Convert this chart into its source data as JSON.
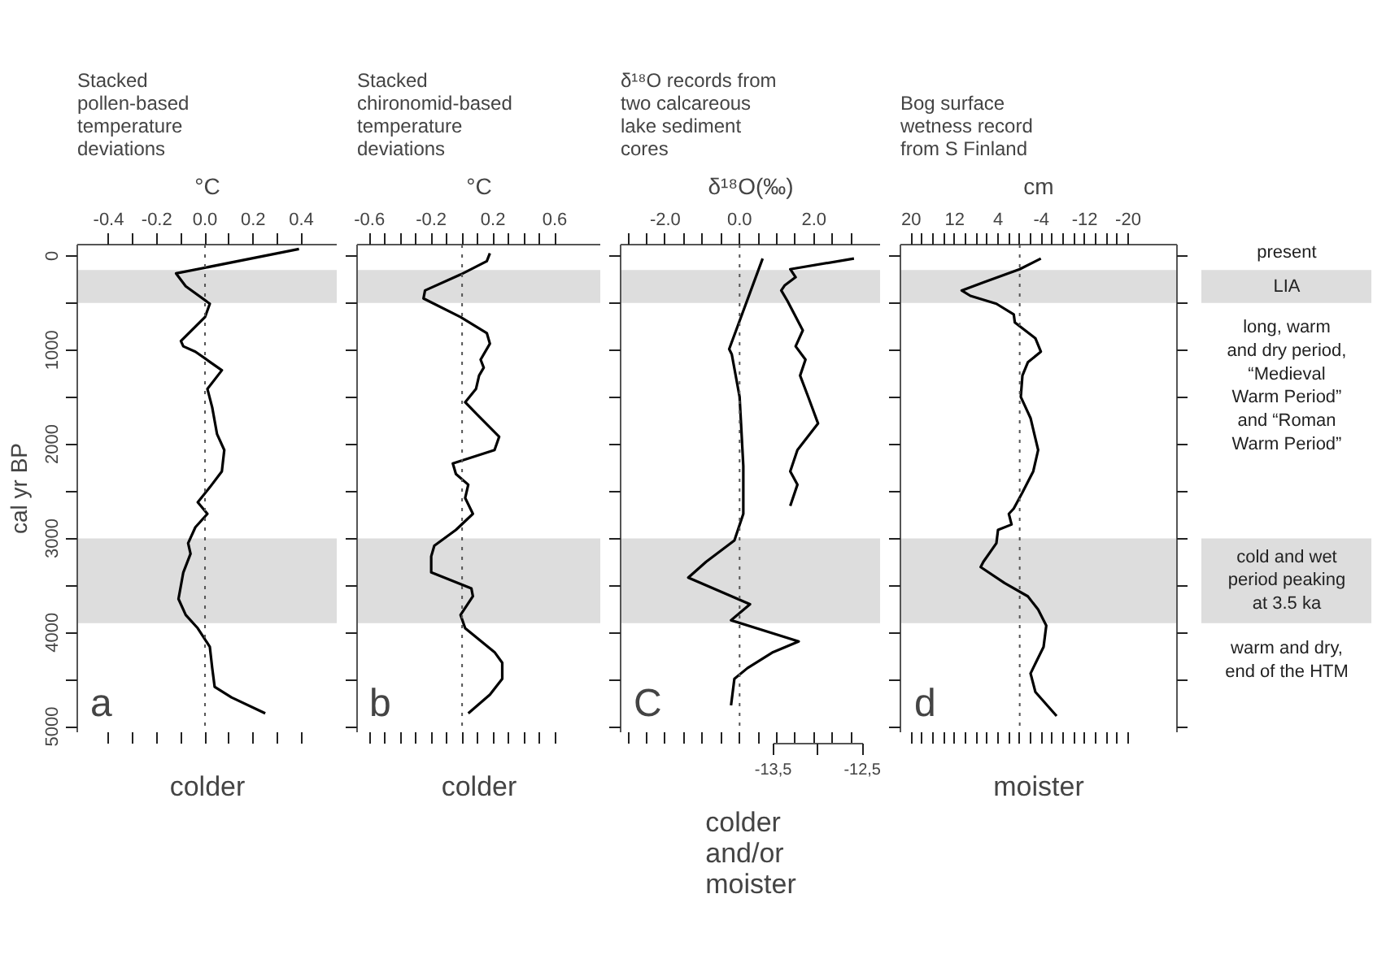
{
  "chart_data": [
    {
      "type": "line",
      "orientation": "horizontal",
      "title": "Stacked\npollen-based\ntemperature\ndeviations",
      "xlabel": "°C",
      "ylabel": "cal yr BP",
      "xlim": [
        -0.53,
        0.55
      ],
      "ylim": [
        5060,
        -120
      ],
      "xticks": [
        -0.4,
        {
          "value": -0.3,
          "label": null
        },
        -0.2,
        {
          "value": -0.1,
          "label": null
        },
        {
          "value": 0,
          "label": "0.0"
        },
        {
          "value": 0.1,
          "label": null
        },
        0.2,
        {
          "value": 0.3,
          "label": null
        },
        0.4
      ],
      "yticks": [
        0,
        {
          "value": 500,
          "label": null
        },
        1000,
        {
          "value": 1500,
          "label": null
        },
        2000,
        {
          "value": 2500,
          "label": null
        },
        3000,
        {
          "value": 3500,
          "label": null
        },
        4000,
        {
          "value": 4500,
          "label": null
        },
        5000
      ],
      "grid": false,
      "series": [
        {
          "color": "#000000",
          "x": [
            -73,
            186,
            322,
            508,
            650,
            904,
            960,
            1017,
            1215,
            1413,
            1610,
            1893,
            2062,
            2288,
            2458,
            2616,
            2740,
            2882,
            3051,
            3164,
            3362,
            3644,
            3814,
            3955,
            4153,
            4379,
            4577,
            4690,
            4859
          ],
          "values": [
            0.39,
            -0.12,
            -0.08,
            0.02,
            0.0,
            -0.1,
            -0.09,
            -0.04,
            0.07,
            0.01,
            0.03,
            0.05,
            0.08,
            0.07,
            0.02,
            -0.03,
            0.01,
            -0.04,
            -0.07,
            -0.06,
            -0.09,
            -0.11,
            -0.08,
            -0.03,
            0.02,
            0.03,
            0.04,
            0.11,
            0.25
          ]
        }
      ],
      "ref_lines": [
        {
          "axis": "x",
          "value": 0,
          "color": "#555555",
          "line_style": "dotted"
        }
      ],
      "bands": [
        {
          "axis": "y",
          "from": 150,
          "to": 500,
          "color": "#dddddd"
        },
        {
          "axis": "y",
          "from": 3000,
          "to": 3900,
          "color": "#dddddd"
        }
      ],
      "annotations": [
        "a",
        "colder"
      ]
    },
    {
      "type": "line",
      "orientation": "horizontal",
      "title": "Stacked\nchironomid-based\ntemperature\ndeviations",
      "xlabel": "°C",
      "xlim": [
        -0.68,
        0.9
      ],
      "ylim": [
        5060,
        -120
      ],
      "tick_labels": "x",
      "xticks": [
        -0.6,
        {
          "value": -0.5,
          "label": null
        },
        {
          "value": -0.4,
          "label": null
        },
        {
          "value": -0.3,
          "label": null
        },
        -0.2,
        {
          "value": -0.1,
          "label": null
        },
        {
          "value": 0,
          "label": null
        },
        {
          "value": 0.1,
          "label": null
        },
        0.2,
        {
          "value": 0.3,
          "label": null
        },
        {
          "value": 0.4,
          "label": null
        },
        {
          "value": 0.5,
          "label": null
        },
        0.6
      ],
      "yticks": [
        0,
        {
          "value": 500,
          "label": null
        },
        1000,
        {
          "value": 1500,
          "label": null
        },
        2000,
        {
          "value": 2500,
          "label": null
        },
        3000,
        {
          "value": 3500,
          "label": null
        },
        4000,
        {
          "value": 4500,
          "label": null
        },
        5000
      ],
      "grid": false,
      "series": [
        {
          "color": "#000000",
          "x": [
            -28,
            56,
            198,
            367,
            452,
            650,
            819,
            932,
            1102,
            1187,
            1271,
            1413,
            1554,
            1723,
            1921,
            2062,
            2204,
            2317,
            2430,
            2571,
            2740,
            2910,
            3079,
            3192,
            3362,
            3531,
            3616,
            3814,
            3955,
            4209,
            4322,
            4492,
            4661,
            4859
          ],
          "values": [
            0.18,
            0.16,
            -0.01,
            -0.24,
            -0.25,
            -0.01,
            0.16,
            0.18,
            0.12,
            0.14,
            0.11,
            0.09,
            0.02,
            0.12,
            0.24,
            0.21,
            -0.06,
            -0.04,
            0.04,
            0.02,
            0.07,
            -0.04,
            -0.18,
            -0.2,
            -0.2,
            0.06,
            0.07,
            -0.01,
            0.02,
            0.21,
            0.26,
            0.26,
            0.18,
            0.04
          ]
        }
      ],
      "ref_lines": [
        {
          "axis": "x",
          "value": 0,
          "color": "#555555",
          "line_style": "dotted"
        }
      ],
      "bands": [
        {
          "axis": "y",
          "from": 150,
          "to": 500,
          "color": "#dddddd"
        },
        {
          "axis": "y",
          "from": 3000,
          "to": 3900,
          "color": "#dddddd"
        }
      ],
      "annotations": [
        "b",
        "colder"
      ]
    },
    {
      "type": "line",
      "orientation": "horizontal",
      "title": "δ¹⁸O records from\ntwo calcareous\nlake sediment\ncores",
      "xlabel": "δ¹⁸O(‰)",
      "xlim": [
        -3.2,
        3.8
      ],
      "x2lim": [
        -15.2,
        -12.3
      ],
      "ylim": [
        5060,
        -120
      ],
      "tick_labels": "x",
      "xticks": [
        {
          "value": -3,
          "label": null
        },
        {
          "value": -2.5,
          "label": null
        },
        {
          "value": -2,
          "label": "-2.0"
        },
        {
          "value": -1.5,
          "label": null
        },
        {
          "value": -1,
          "label": null
        },
        {
          "value": -0.5,
          "label": null
        },
        {
          "value": 0,
          "label": "0.0"
        },
        {
          "value": 0.5,
          "label": null
        },
        {
          "value": 1,
          "label": null
        },
        {
          "value": 1.5,
          "label": null
        },
        {
          "value": 2,
          "label": "2.0"
        },
        {
          "value": 2.5,
          "label": null
        },
        {
          "value": 3,
          "label": null
        }
      ],
      "x2ticks": [
        {
          "value": -13.5,
          "label": "-13,5"
        },
        {
          "value": -13,
          "label": null
        },
        {
          "value": -12.5,
          "label": "-12,5"
        }
      ],
      "yticks": [
        0,
        {
          "value": 500,
          "label": null
        },
        1000,
        {
          "value": 1500,
          "label": null
        },
        2000,
        {
          "value": 2500,
          "label": null
        },
        3000,
        {
          "value": 3500,
          "label": null
        },
        4000,
        {
          "value": 4500,
          "label": null
        },
        5000
      ],
      "grid": false,
      "series": [
        {
          "color": "#000000",
          "x": [
            28,
            989,
            1045,
            1497,
            2232,
            2740,
            3023,
            3249,
            3418,
            3701,
            3870,
            4096,
            4209,
            4379,
            4492,
            4774
          ],
          "values": [
            0.62,
            -0.28,
            -0.21,
            0.0,
            0.1,
            0.1,
            -0.14,
            -0.9,
            -1.38,
            0.28,
            -0.23,
            1.59,
            0.9,
            0.21,
            -0.14,
            -0.23
          ]
        },
        {
          "color": "#000000",
          "axis": "x2",
          "x": [
            28,
            141,
            226,
            311,
            367,
            480,
            791,
            960,
            1102,
            1271,
            1497,
            1780,
            2062,
            2288,
            2430,
            2655
          ],
          "values": [
            -12.6,
            -13.31,
            -13.25,
            -13.37,
            -13.41,
            -13.34,
            -13.17,
            -13.25,
            -13.14,
            -13.2,
            -13.11,
            -13.0,
            -13.23,
            -13.31,
            -13.23,
            -13.31
          ]
        }
      ],
      "ref_lines": [
        {
          "axis": "x",
          "value": 0,
          "color": "#555555",
          "line_style": "dotted"
        }
      ],
      "bands": [
        {
          "axis": "y",
          "from": 150,
          "to": 500,
          "color": "#dddddd"
        },
        {
          "axis": "y",
          "from": 3000,
          "to": 3900,
          "color": "#dddddd"
        }
      ],
      "annotations": [
        "C",
        "colder\nand/or\nmoister"
      ]
    },
    {
      "type": "line",
      "orientation": "horizontal",
      "title": "Bog surface\nwetness record\nfrom S Finland",
      "xlabel": "cm",
      "xlim": [
        22,
        -29
      ],
      "ylim": [
        5060,
        -120
      ],
      "tick_labels": "x",
      "xticks": [
        20,
        {
          "value": 18,
          "label": null
        },
        {
          "value": 16,
          "label": null
        },
        {
          "value": 14,
          "label": null
        },
        12,
        {
          "value": 10,
          "label": null
        },
        {
          "value": 8,
          "label": null
        },
        {
          "value": 6,
          "label": null
        },
        4,
        {
          "value": 2,
          "label": null
        },
        {
          "value": 0,
          "label": null
        },
        {
          "value": -2,
          "label": null
        },
        -4,
        {
          "value": -6,
          "label": null
        },
        {
          "value": -8,
          "label": null
        },
        {
          "value": -10,
          "label": null
        },
        -12,
        {
          "value": -14,
          "label": null
        },
        {
          "value": -16,
          "label": null
        },
        {
          "value": -18,
          "label": null
        },
        -20
      ],
      "yticks": [
        0,
        {
          "value": 500,
          "label": null
        },
        1000,
        {
          "value": 1500,
          "label": null
        },
        2000,
        {
          "value": 2500,
          "label": null
        },
        3000,
        {
          "value": 3500,
          "label": null
        },
        4000,
        {
          "value": 4500,
          "label": null
        },
        5000
      ],
      "grid": false,
      "series": [
        {
          "color": "#000000",
          "x": [
            28,
            141,
            282,
            367,
            424,
            508,
            621,
            706,
            876,
            1017,
            1130,
            1271,
            1497,
            1723,
            2062,
            2288,
            2514,
            2684,
            2740,
            2853,
            2910,
            3051,
            3249,
            3305,
            3475,
            3616,
            3757,
            3927,
            4153,
            4435,
            4633,
            4887
          ],
          "values": [
            -3.9,
            0.0,
            6.7,
            10.7,
            9.1,
            4.3,
            1.1,
            0.9,
            -2.9,
            -3.9,
            -1.5,
            -0.5,
            -0.2,
            -2.0,
            -3.4,
            -2.5,
            -0.5,
            1.1,
            2.0,
            1.5,
            4.0,
            4.3,
            6.7,
            7.2,
            2.8,
            -1.5,
            -3.4,
            -4.9,
            -4.4,
            -2.0,
            -2.9,
            -6.8
          ]
        }
      ],
      "ref_lines": [
        {
          "axis": "x",
          "value": 0,
          "color": "#555555",
          "line_style": "dotted"
        }
      ],
      "bands": [
        {
          "axis": "y",
          "from": 150,
          "to": 500,
          "color": "#dddddd"
        },
        {
          "axis": "y",
          "from": 3000,
          "to": 3900,
          "color": "#dddddd"
        }
      ],
      "annotations": [
        "d",
        "moister",
        "present",
        "LIA",
        "long, warm\nand dry period,\n“Medieval\nWarm Period”\nand “Roman\nWarm Period”",
        "cold and wet\nperiod peaking\nat 3.5 ka",
        "warm and dry,\nend of the HTM"
      ]
    }
  ]
}
